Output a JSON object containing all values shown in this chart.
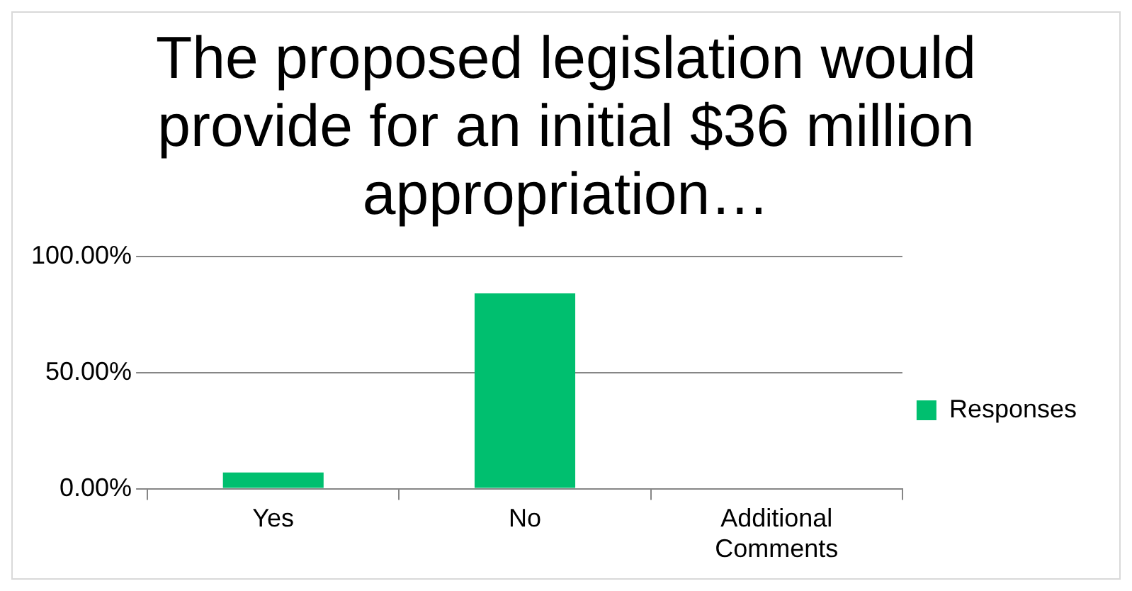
{
  "chart_data": {
    "type": "bar",
    "title": "The proposed legislation would provide for an initial $36 million appropriation…",
    "categories": [
      "Yes",
      "No",
      "Additional Comments"
    ],
    "series": [
      {
        "name": "Responses",
        "color": "#00bf6f",
        "values": [
          7,
          84,
          0
        ]
      }
    ],
    "ylim": [
      0,
      100
    ],
    "yticks": [
      {
        "value": 0,
        "label": "0.00%"
      },
      {
        "value": 50,
        "label": "50.00%"
      },
      {
        "value": 100,
        "label": "100.00%"
      }
    ],
    "grid": "y",
    "legend": "right"
  }
}
